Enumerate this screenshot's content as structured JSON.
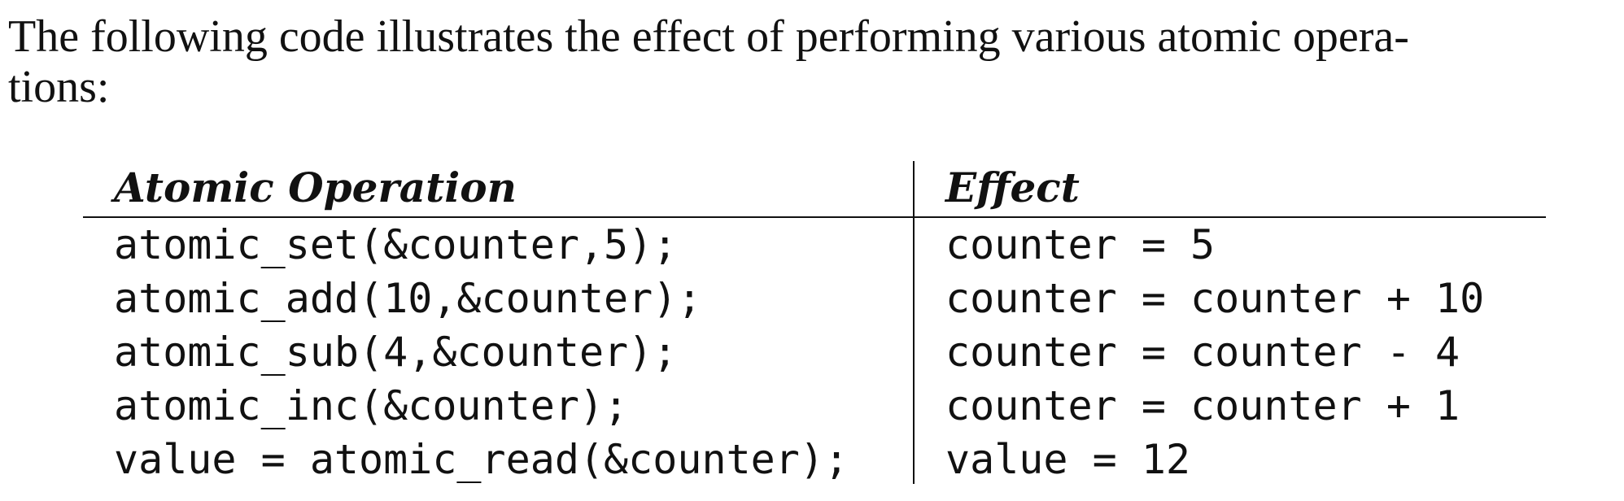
{
  "intro": {
    "line1": "The following code illustrates the effect of performing various atomic opera-",
    "line2": "tions:"
  },
  "table": {
    "headers": [
      "Atomic Operation",
      "Effect"
    ],
    "rows": [
      {
        "operation": "atomic_set(&counter,5);",
        "effect": "counter = 5"
      },
      {
        "operation": "atomic_add(10,&counter);",
        "effect": "counter = counter + 10"
      },
      {
        "operation": "atomic_sub(4,&counter);",
        "effect": "counter = counter - 4"
      },
      {
        "operation": "atomic_inc(&counter);",
        "effect": "counter = counter + 1"
      },
      {
        "operation": "value = atomic_read(&counter);",
        "effect": "value = 12"
      }
    ]
  }
}
